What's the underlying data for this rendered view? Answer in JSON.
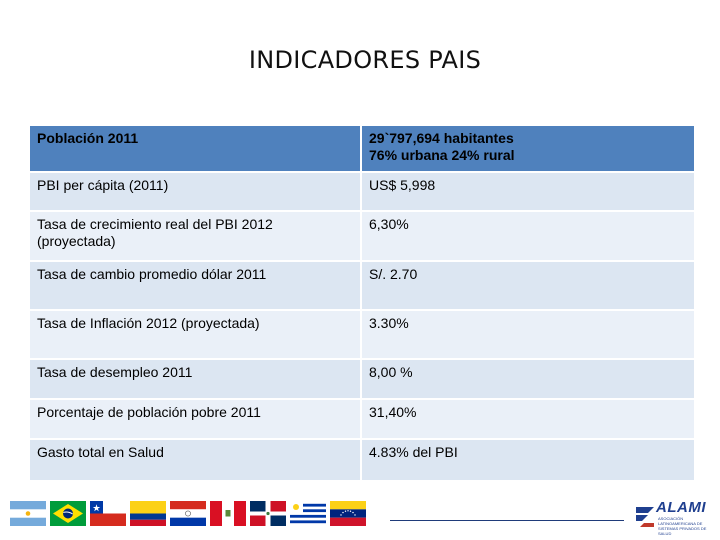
{
  "title": "INDICADORES PAIS",
  "table": {
    "header": {
      "label": "Población 2011",
      "value_line1": "29`797,694 habitantes",
      "value_line2": "76% urbana 24% rural"
    },
    "rows": [
      {
        "label": "PBI  per cápita (2011)",
        "value": "US$  5,998"
      },
      {
        "label": "Tasa de crecimiento real del PBI 2012 (proyectada)",
        "value": "6,30%"
      },
      {
        "label": "Tasa de cambio promedio  dólar  2011",
        "value": "S/. 2.70"
      },
      {
        "label": "Tasa de Inflación 2012 (proyectada)",
        "value": "3.30%"
      },
      {
        "label": "Tasa de desempleo 2011",
        "value": "8,00 %"
      },
      {
        "label": "Porcentaje de población pobre 2011",
        "value": "31,40%"
      },
      {
        "label": "Gasto total en Salud",
        "value": "4.83% del PBI"
      }
    ]
  },
  "footer": {
    "flags": [
      "argentina-flag",
      "brazil-flag",
      "chile-flag",
      "colombia-flag",
      "paraguay-flag",
      "peru-flag",
      "dominican-republic-flag",
      "uruguay-flag",
      "venezuela-flag"
    ],
    "logo": {
      "name": "ALAMI",
      "subtitle": "ASOCIACIÓN LATINOAMERICANA DE SISTEMAS PRIVADOS DE SALUD"
    }
  },
  "colors": {
    "header_fill": "#4f81bd",
    "row_fill_a": "#dce6f2",
    "row_fill_b": "#eaf0f8",
    "logo_blue": "#1f3f8f"
  }
}
